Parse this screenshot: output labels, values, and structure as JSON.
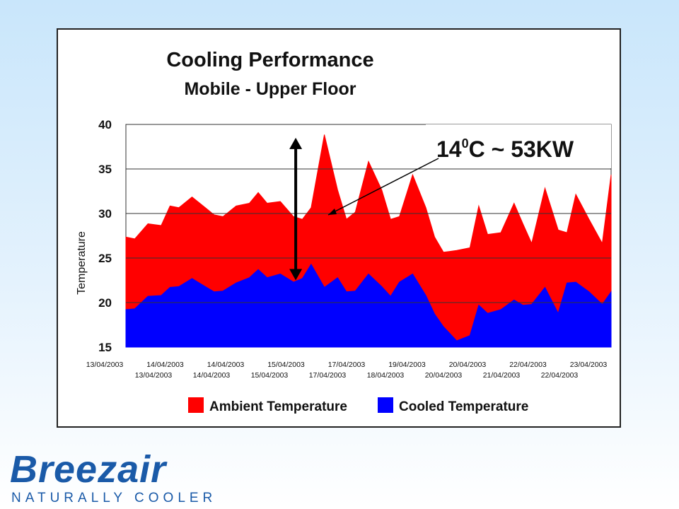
{
  "chart_data": {
    "type": "area",
    "title": "Cooling Performance",
    "subtitle": "Mobile - Upper Floor",
    "xlabel": "",
    "ylabel": "Temperature",
    "ylim": [
      15,
      40
    ],
    "yticks": [
      15,
      20,
      25,
      30,
      35,
      40
    ],
    "grid": true,
    "legend_position": "bottom",
    "x_tick_labels_row1": [
      "13/04/2003",
      "14/04/2003",
      "14/04/2003",
      "15/04/2003",
      "17/04/2003",
      "19/04/2003",
      "20/04/2003",
      "22/04/2003",
      "23/04/2003"
    ],
    "x_tick_labels_row2": [
      "13/04/2003",
      "14/04/2003",
      "15/04/2003",
      "17/04/2003",
      "18/04/2003",
      "20/04/2003",
      "21/04/2003",
      "22/04/2003"
    ],
    "x": [
      0,
      0.2,
      0.5,
      0.8,
      1.0,
      1.2,
      1.5,
      1.8,
      2.0,
      2.2,
      2.5,
      2.8,
      3.0,
      3.2,
      3.5,
      3.8,
      4.0,
      4.2,
      4.5,
      4.8,
      5.0,
      5.2,
      5.5,
      5.8,
      6.0,
      6.2,
      6.5,
      6.8,
      7.0,
      7.2,
      7.5,
      7.8,
      8.0,
      8.2,
      8.5,
      8.8,
      9.0,
      9.2,
      9.5,
      9.8,
      10.0,
      10.2,
      10.5,
      10.8,
      11.0
    ],
    "series": [
      {
        "name": "Ambient Temperature",
        "color": "#ff0000",
        "values": [
          27,
          27.5,
          28.5,
          29,
          30.5,
          31,
          31.5,
          31,
          29.5,
          30,
          30.5,
          31.5,
          32,
          31.5,
          31,
          30,
          29,
          31,
          38.5,
          33,
          29,
          30.5,
          35.5,
          33,
          29,
          30,
          34,
          31,
          27,
          26,
          25.5,
          26.5,
          30.5,
          28,
          27.5,
          31.5,
          28.5,
          27,
          32.5,
          28.5,
          27.5,
          32.5,
          29,
          27,
          34
        ]
      },
      {
        "name": "Cooled Temperature",
        "color": "#0000ff",
        "values": [
          19,
          19.5,
          20.5,
          21,
          21.5,
          22,
          22.5,
          22,
          21,
          21.5,
          22,
          23,
          23.5,
          23,
          23,
          22.5,
          22.5,
          24.5,
          21.5,
          23,
          21,
          21.5,
          23,
          22,
          20.5,
          22.5,
          23,
          21,
          18.5,
          17.5,
          15.5,
          16.5,
          19.5,
          19,
          19,
          20.5,
          19.5,
          20,
          21.5,
          19,
          22,
          22.5,
          21,
          20,
          21
        ]
      }
    ],
    "annotation": {
      "text_main": "14",
      "text_sup": "0",
      "text_rest": "C ~ 53KW",
      "arrow_x": 3.85,
      "arrow_from": 22.5,
      "arrow_to": 38.5
    }
  },
  "logo": {
    "wordmark": "Breezair",
    "tagline": "NATURALLY COOLER",
    "color": "#1a5aa8"
  }
}
